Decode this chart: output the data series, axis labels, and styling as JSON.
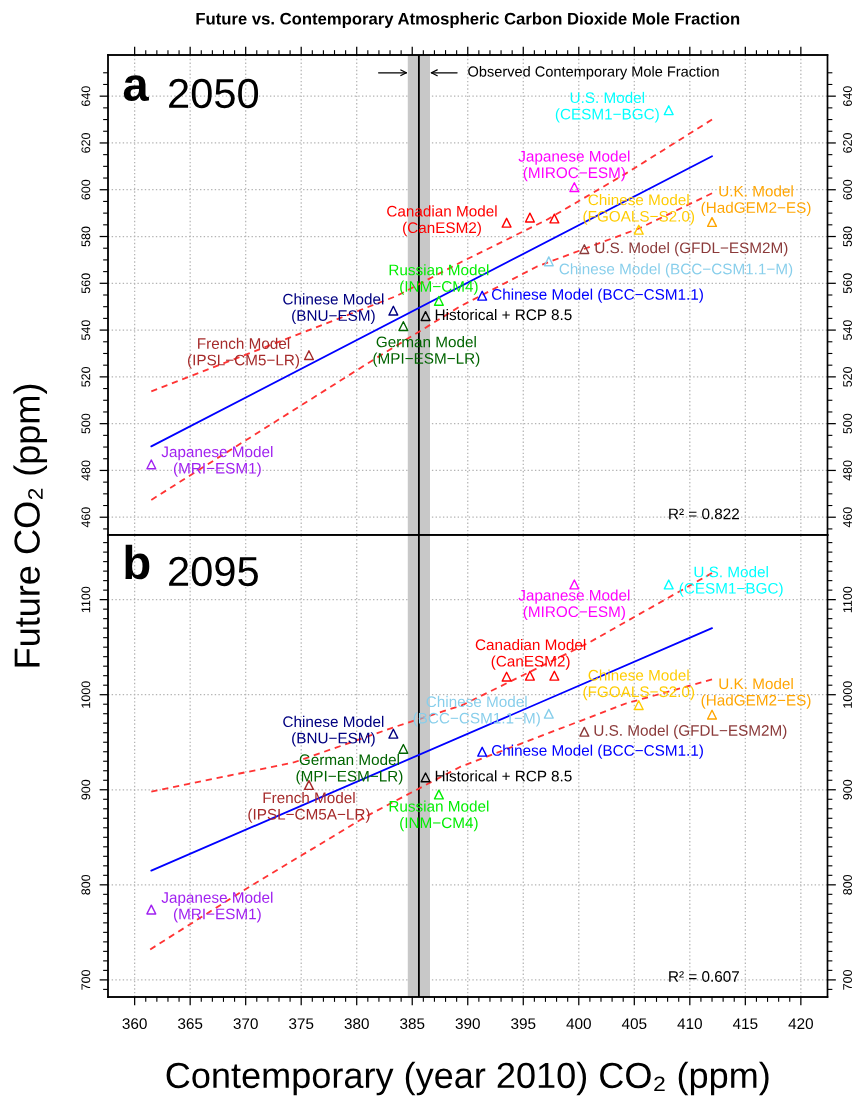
{
  "chart_data": [
    {
      "type": "scatter",
      "title": "Future vs. Contemporary Atmospheric Carbon Dioxide Mole Fraction",
      "ylabel": "Future CO₂ (ppm)",
      "marker": "triangle",
      "grid": true,
      "tick_labels": "y",
      "xlim": [
        357.6,
        422.4
      ],
      "ylim": [
        452.4,
        657.6
      ],
      "y2lim": [
        452.4,
        657.6
      ],
      "xticks": [
        360,
        {
          "value": 361,
          "label": null
        },
        {
          "value": 362,
          "label": null
        },
        {
          "value": 363,
          "label": null
        },
        {
          "value": 364,
          "label": null
        },
        365,
        {
          "value": 366,
          "label": null
        },
        {
          "value": 367,
          "label": null
        },
        {
          "value": 368,
          "label": null
        },
        {
          "value": 369,
          "label": null
        },
        370,
        {
          "value": 371,
          "label": null
        },
        {
          "value": 372,
          "label": null
        },
        {
          "value": 373,
          "label": null
        },
        {
          "value": 374,
          "label": null
        },
        375,
        {
          "value": 376,
          "label": null
        },
        {
          "value": 377,
          "label": null
        },
        {
          "value": 378,
          "label": null
        },
        {
          "value": 379,
          "label": null
        },
        380,
        {
          "value": 381,
          "label": null
        },
        {
          "value": 382,
          "label": null
        },
        {
          "value": 383,
          "label": null
        },
        {
          "value": 384,
          "label": null
        },
        385,
        {
          "value": 386,
          "label": null
        },
        {
          "value": 387,
          "label": null
        },
        {
          "value": 388,
          "label": null
        },
        {
          "value": 389,
          "label": null
        },
        390,
        {
          "value": 391,
          "label": null
        },
        {
          "value": 392,
          "label": null
        },
        {
          "value": 393,
          "label": null
        },
        {
          "value": 394,
          "label": null
        },
        395,
        {
          "value": 396,
          "label": null
        },
        {
          "value": 397,
          "label": null
        },
        {
          "value": 398,
          "label": null
        },
        {
          "value": 399,
          "label": null
        },
        400,
        {
          "value": 401,
          "label": null
        },
        {
          "value": 402,
          "label": null
        },
        {
          "value": 403,
          "label": null
        },
        {
          "value": 404,
          "label": null
        },
        405,
        {
          "value": 406,
          "label": null
        },
        {
          "value": 407,
          "label": null
        },
        {
          "value": 408,
          "label": null
        },
        {
          "value": 409,
          "label": null
        },
        410,
        {
          "value": 411,
          "label": null
        },
        {
          "value": 412,
          "label": null
        },
        {
          "value": 413,
          "label": null
        },
        {
          "value": 414,
          "label": null
        },
        415,
        {
          "value": 416,
          "label": null
        },
        {
          "value": 417,
          "label": null
        },
        {
          "value": 418,
          "label": null
        },
        {
          "value": 419,
          "label": null
        },
        420
      ],
      "yticks": [
        {
          "value": 455,
          "label": null
        },
        460,
        {
          "value": 465,
          "label": null
        },
        {
          "value": 470,
          "label": null
        },
        {
          "value": 475,
          "label": null
        },
        480,
        {
          "value": 485,
          "label": null
        },
        {
          "value": 490,
          "label": null
        },
        {
          "value": 495,
          "label": null
        },
        500,
        {
          "value": 505,
          "label": null
        },
        {
          "value": 510,
          "label": null
        },
        {
          "value": 515,
          "label": null
        },
        520,
        {
          "value": 525,
          "label": null
        },
        {
          "value": 530,
          "label": null
        },
        {
          "value": 535,
          "label": null
        },
        540,
        {
          "value": 545,
          "label": null
        },
        {
          "value": 550,
          "label": null
        },
        {
          "value": 555,
          "label": null
        },
        560,
        {
          "value": 565,
          "label": null
        },
        {
          "value": 570,
          "label": null
        },
        {
          "value": 575,
          "label": null
        },
        580,
        {
          "value": 585,
          "label": null
        },
        {
          "value": 590,
          "label": null
        },
        {
          "value": 595,
          "label": null
        },
        600,
        {
          "value": 605,
          "label": null
        },
        {
          "value": 610,
          "label": null
        },
        {
          "value": 615,
          "label": null
        },
        620,
        {
          "value": 625,
          "label": null
        },
        {
          "value": 630,
          "label": null
        },
        {
          "value": 635,
          "label": null
        },
        640,
        {
          "value": 645,
          "label": null
        },
        {
          "value": 650,
          "label": null
        }
      ],
      "y2ticks": [
        {
          "value": 455,
          "label": null
        },
        460,
        {
          "value": 465,
          "label": null
        },
        {
          "value": 470,
          "label": null
        },
        {
          "value": 475,
          "label": null
        },
        480,
        {
          "value": 485,
          "label": null
        },
        {
          "value": 490,
          "label": null
        },
        {
          "value": 495,
          "label": null
        },
        500,
        {
          "value": 505,
          "label": null
        },
        {
          "value": 510,
          "label": null
        },
        {
          "value": 515,
          "label": null
        },
        520,
        {
          "value": 525,
          "label": null
        },
        {
          "value": 530,
          "label": null
        },
        {
          "value": 535,
          "label": null
        },
        540,
        {
          "value": 545,
          "label": null
        },
        {
          "value": 550,
          "label": null
        },
        {
          "value": 555,
          "label": null
        },
        560,
        {
          "value": 565,
          "label": null
        },
        {
          "value": 570,
          "label": null
        },
        {
          "value": 575,
          "label": null
        },
        580,
        {
          "value": 585,
          "label": null
        },
        {
          "value": 590,
          "label": null
        },
        {
          "value": 595,
          "label": null
        },
        600,
        {
          "value": 605,
          "label": null
        },
        {
          "value": 610,
          "label": null
        },
        {
          "value": 615,
          "label": null
        },
        620,
        {
          "value": 625,
          "label": null
        },
        {
          "value": 630,
          "label": null
        },
        {
          "value": 635,
          "label": null
        },
        640,
        {
          "value": 645,
          "label": null
        },
        {
          "value": 650,
          "label": null
        }
      ],
      "series": [
        {
          "name": "Japanese Model\n(MRI−ESM1)",
          "color": "#a020f0",
          "x": [
            361.5
          ],
          "values": [
            482.6
          ]
        },
        {
          "name": "French Model\n(IPSL−CM5−LR)",
          "color": "#a52a2a",
          "x": [
            375.7
          ],
          "values": [
            529.3
          ]
        },
        {
          "name": "Chinese Model\n(BNU−ESM)",
          "color": "#000080",
          "x": [
            383.3
          ],
          "values": [
            548.3
          ]
        },
        {
          "name": "German Model\n(MPI−ESM−LR)",
          "color": "#006400",
          "x": [
            384.2
          ],
          "values": [
            541.7
          ]
        },
        {
          "name": "Historical + RCP 8.5",
          "color": "#000000",
          "x": [
            386.2
          ],
          "values": [
            546.0
          ]
        },
        {
          "name": "Russian Model\n(INM−CM4)",
          "color": "#00ee00",
          "x": [
            387.4
          ],
          "values": [
            552.5
          ]
        },
        {
          "name": "Chinese Model (BCC−CSM1.1)",
          "color": "#0000ff",
          "x": [
            391.3
          ],
          "values": [
            554.7
          ]
        },
        {
          "name": "Canadian Model\n(CanESM2)",
          "color": "#ff0000",
          "x": [
            393.5,
            395.6,
            397.8
          ],
          "values": [
            585.9,
            588.1,
            587.7
          ]
        },
        {
          "name": "Chinese Model (BCC−CSM1.1−M)",
          "color": "#87ceeb",
          "x": [
            397.3
          ],
          "values": [
            569.4
          ]
        },
        {
          "name": "U.S. Model (GFDL−ESM2M)",
          "color": "#8b3a3a",
          "x": [
            400.5
          ],
          "values": [
            574.6
          ]
        },
        {
          "name": "Japanese Model\n(MIROC−ESM)",
          "color": "#ff00ff",
          "x": [
            399.6
          ],
          "values": [
            601.1
          ]
        },
        {
          "name": "Chinese Model\n(FGOALS−S2.0)",
          "color": "#ffcc00",
          "x": [
            405.4
          ],
          "values": [
            582.9
          ]
        },
        {
          "name": "U.K. Model\n(HadGEM2−ES)",
          "color": "#ffa500",
          "x": [
            412.0
          ],
          "values": [
            586.2
          ]
        },
        {
          "name": "U.S. Model\n(CESM1−BGC)",
          "color": "#00ffff",
          "x": [
            408.1
          ],
          "values": [
            634.0
          ]
        },
        {
          "type": "line",
          "marker": "none",
          "color": "#0000ff",
          "x": [
            361.5,
            412.0
          ],
          "values": [
            490.3,
            614.3
          ]
        },
        {
          "type": "line",
          "marker": "none",
          "line_style": "dashed",
          "color": "#ff3333",
          "x": [
            361.5,
            383.6,
            389.5,
            397.1,
            404.3,
            412.0
          ],
          "values": [
            513.8,
            554.6,
            569.3,
            587.1,
            607.1,
            630.0
          ]
        },
        {
          "type": "line",
          "marker": "none",
          "line_style": "dashed",
          "color": "#ff3333",
          "x": [
            361.5,
            381.2,
            389.3,
            396.2,
            405.5,
            412.0
          ],
          "values": [
            467.4,
            526.4,
            550.1,
            567.1,
            583.6,
            598.5
          ]
        }
      ],
      "ref_lines": [
        {
          "axis": "x",
          "value": 385.6,
          "color": "#000000"
        }
      ],
      "bands": [
        {
          "axis": "x",
          "from": 384.6,
          "to": 386.6,
          "color": "#c8c8c8"
        }
      ],
      "annotations": [
        "a",
        "2050",
        "R² = 0.822",
        {
          "text": "Observed Contemporary Mole Fraction",
          "x": 386.6,
          "y": 650
        }
      ]
    },
    {
      "type": "scatter",
      "xlabel": "Contemporary (year 2010) CO₂ (ppm)",
      "marker": "triangle",
      "grid": true,
      "xlim": [
        357.6,
        422.4
      ],
      "ylim": [
        682,
        1168
      ],
      "y2lim": [
        682,
        1168
      ],
      "xticks": [
        360,
        {
          "value": 361,
          "label": null
        },
        {
          "value": 362,
          "label": null
        },
        {
          "value": 363,
          "label": null
        },
        {
          "value": 364,
          "label": null
        },
        365,
        {
          "value": 366,
          "label": null
        },
        {
          "value": 367,
          "label": null
        },
        {
          "value": 368,
          "label": null
        },
        {
          "value": 369,
          "label": null
        },
        370,
        {
          "value": 371,
          "label": null
        },
        {
          "value": 372,
          "label": null
        },
        {
          "value": 373,
          "label": null
        },
        {
          "value": 374,
          "label": null
        },
        375,
        {
          "value": 376,
          "label": null
        },
        {
          "value": 377,
          "label": null
        },
        {
          "value": 378,
          "label": null
        },
        {
          "value": 379,
          "label": null
        },
        380,
        {
          "value": 381,
          "label": null
        },
        {
          "value": 382,
          "label": null
        },
        {
          "value": 383,
          "label": null
        },
        {
          "value": 384,
          "label": null
        },
        385,
        {
          "value": 386,
          "label": null
        },
        {
          "value": 387,
          "label": null
        },
        {
          "value": 388,
          "label": null
        },
        {
          "value": 389,
          "label": null
        },
        390,
        {
          "value": 391,
          "label": null
        },
        {
          "value": 392,
          "label": null
        },
        {
          "value": 393,
          "label": null
        },
        {
          "value": 394,
          "label": null
        },
        395,
        {
          "value": 396,
          "label": null
        },
        {
          "value": 397,
          "label": null
        },
        {
          "value": 398,
          "label": null
        },
        {
          "value": 399,
          "label": null
        },
        400,
        {
          "value": 401,
          "label": null
        },
        {
          "value": 402,
          "label": null
        },
        {
          "value": 403,
          "label": null
        },
        {
          "value": 404,
          "label": null
        },
        405,
        {
          "value": 406,
          "label": null
        },
        {
          "value": 407,
          "label": null
        },
        {
          "value": 408,
          "label": null
        },
        {
          "value": 409,
          "label": null
        },
        410,
        {
          "value": 411,
          "label": null
        },
        {
          "value": 412,
          "label": null
        },
        {
          "value": 413,
          "label": null
        },
        {
          "value": 414,
          "label": null
        },
        415,
        {
          "value": 416,
          "label": null
        },
        {
          "value": 417,
          "label": null
        },
        {
          "value": 418,
          "label": null
        },
        {
          "value": 419,
          "label": null
        },
        420
      ],
      "yticks": [
        {
          "value": 690,
          "label": null
        },
        700,
        {
          "value": 710,
          "label": null
        },
        {
          "value": 720,
          "label": null
        },
        {
          "value": 730,
          "label": null
        },
        {
          "value": 740,
          "label": null
        },
        {
          "value": 750,
          "label": null
        },
        {
          "value": 760,
          "label": null
        },
        {
          "value": 770,
          "label": null
        },
        {
          "value": 780,
          "label": null
        },
        {
          "value": 790,
          "label": null
        },
        800,
        {
          "value": 810,
          "label": null
        },
        {
          "value": 820,
          "label": null
        },
        {
          "value": 830,
          "label": null
        },
        {
          "value": 840,
          "label": null
        },
        {
          "value": 850,
          "label": null
        },
        {
          "value": 860,
          "label": null
        },
        {
          "value": 870,
          "label": null
        },
        {
          "value": 880,
          "label": null
        },
        {
          "value": 890,
          "label": null
        },
        900,
        {
          "value": 910,
          "label": null
        },
        {
          "value": 920,
          "label": null
        },
        {
          "value": 930,
          "label": null
        },
        {
          "value": 940,
          "label": null
        },
        {
          "value": 950,
          "label": null
        },
        {
          "value": 960,
          "label": null
        },
        {
          "value": 970,
          "label": null
        },
        {
          "value": 980,
          "label": null
        },
        {
          "value": 990,
          "label": null
        },
        1000,
        {
          "value": 1010,
          "label": null
        },
        {
          "value": 1020,
          "label": null
        },
        {
          "value": 1030,
          "label": null
        },
        {
          "value": 1040,
          "label": null
        },
        {
          "value": 1050,
          "label": null
        },
        {
          "value": 1060,
          "label": null
        },
        {
          "value": 1070,
          "label": null
        },
        {
          "value": 1080,
          "label": null
        },
        {
          "value": 1090,
          "label": null
        },
        1100,
        {
          "value": 1110,
          "label": null
        },
        {
          "value": 1120,
          "label": null
        },
        {
          "value": 1130,
          "label": null
        },
        {
          "value": 1140,
          "label": null
        },
        {
          "value": 1150,
          "label": null
        },
        {
          "value": 1160,
          "label": null
        }
      ],
      "y2ticks": [
        {
          "value": 690,
          "label": null
        },
        700,
        {
          "value": 710,
          "label": null
        },
        {
          "value": 720,
          "label": null
        },
        {
          "value": 730,
          "label": null
        },
        {
          "value": 740,
          "label": null
        },
        {
          "value": 750,
          "label": null
        },
        {
          "value": 760,
          "label": null
        },
        {
          "value": 770,
          "label": null
        },
        {
          "value": 780,
          "label": null
        },
        {
          "value": 790,
          "label": null
        },
        800,
        {
          "value": 810,
          "label": null
        },
        {
          "value": 820,
          "label": null
        },
        {
          "value": 830,
          "label": null
        },
        {
          "value": 840,
          "label": null
        },
        {
          "value": 850,
          "label": null
        },
        {
          "value": 860,
          "label": null
        },
        {
          "value": 870,
          "label": null
        },
        {
          "value": 880,
          "label": null
        },
        {
          "value": 890,
          "label": null
        },
        900,
        {
          "value": 910,
          "label": null
        },
        {
          "value": 920,
          "label": null
        },
        {
          "value": 930,
          "label": null
        },
        {
          "value": 940,
          "label": null
        },
        {
          "value": 950,
          "label": null
        },
        {
          "value": 960,
          "label": null
        },
        {
          "value": 970,
          "label": null
        },
        {
          "value": 980,
          "label": null
        },
        {
          "value": 990,
          "label": null
        },
        1000,
        {
          "value": 1010,
          "label": null
        },
        {
          "value": 1020,
          "label": null
        },
        {
          "value": 1030,
          "label": null
        },
        {
          "value": 1040,
          "label": null
        },
        {
          "value": 1050,
          "label": null
        },
        {
          "value": 1060,
          "label": null
        },
        {
          "value": 1070,
          "label": null
        },
        {
          "value": 1080,
          "label": null
        },
        {
          "value": 1090,
          "label": null
        },
        1100,
        {
          "value": 1110,
          "label": null
        },
        {
          "value": 1120,
          "label": null
        },
        {
          "value": 1130,
          "label": null
        },
        {
          "value": 1140,
          "label": null
        },
        {
          "value": 1150,
          "label": null
        },
        {
          "value": 1160,
          "label": null
        }
      ],
      "series": [
        {
          "name": "Japanese Model\n(MRI−ESM1)",
          "color": "#a020f0",
          "x": [
            361.5
          ],
          "values": [
            774
          ]
        },
        {
          "name": "French Model\n(IPSL−CM5A−LR)",
          "color": "#a52a2a",
          "x": [
            375.7
          ],
          "values": [
            905
          ]
        },
        {
          "name": "Chinese Model\n(BNU−ESM)",
          "color": "#000080",
          "x": [
            383.3
          ],
          "values": [
            959
          ]
        },
        {
          "name": "German Model\n(MPI−ESM−LR)",
          "color": "#006400",
          "x": [
            384.2
          ],
          "values": [
            943
          ]
        },
        {
          "name": "Historical + RCP 8.5",
          "color": "#000000",
          "x": [
            386.2
          ],
          "values": [
            913
          ]
        },
        {
          "name": "Russian Model\n(INM−CM4)",
          "color": "#00ee00",
          "x": [
            387.4
          ],
          "values": [
            895
          ]
        },
        {
          "name": "Chinese Model (BCC−CSM1.1)",
          "color": "#0000ff",
          "x": [
            391.3
          ],
          "values": [
            940
          ]
        },
        {
          "name": "Canadian Model\n(CanESM2)",
          "color": "#ff0000",
          "x": [
            393.5,
            395.6,
            397.8
          ],
          "values": [
            1019,
            1020,
            1020
          ]
        },
        {
          "name": "Chinese Model\n(BCC−CSM1.1−M)",
          "color": "#87ceeb",
          "x": [
            397.3
          ],
          "values": [
            980
          ]
        },
        {
          "name": "U.S. Model (GFDL−ESM2M)",
          "color": "#8b3a3a",
          "x": [
            400.5
          ],
          "values": [
            961
          ]
        },
        {
          "name": "Japanese Model\n(MIROC−ESM)",
          "color": "#ff00ff",
          "x": [
            399.6
          ],
          "values": [
            1116
          ]
        },
        {
          "name": "Chinese Model\n(FGOALS−S2.0)",
          "color": "#ffcc00",
          "x": [
            405.4
          ],
          "values": [
            989
          ]
        },
        {
          "name": "U.K. Model\n(HadGEM2−ES)",
          "color": "#ffa500",
          "x": [
            412.0
          ],
          "values": [
            979
          ]
        },
        {
          "name": "U.S. Model\n(CESM1−BGC)",
          "color": "#00ffff",
          "x": [
            408.1
          ],
          "values": [
            1116
          ]
        },
        {
          "type": "line",
          "marker": "none",
          "color": "#0000ff",
          "x": [
            361.5,
            412.0
          ],
          "values": [
            815,
            1070
          ]
        },
        {
          "type": "line",
          "marker": "none",
          "line_style": "dashed",
          "color": "#ff3333",
          "x": [
            361.5,
            374.4,
            383.4,
            389.5,
            400.8,
            412.0
          ],
          "values": [
            898,
            929,
            966,
            989,
            1054,
            1128
          ]
        },
        {
          "type": "line",
          "marker": "none",
          "line_style": "dashed",
          "color": "#ff3333",
          "x": [
            361.4,
            370.2,
            381.0,
            389.3,
            404.3,
            412.0
          ],
          "values": [
            732,
            797,
            873,
            924,
            991,
            1016
          ]
        }
      ],
      "ref_lines": [
        {
          "axis": "x",
          "value": 385.6,
          "color": "#000000"
        }
      ],
      "bands": [
        {
          "axis": "x",
          "from": 384.6,
          "to": 386.6,
          "color": "#c8c8c8"
        }
      ],
      "annotations": [
        "b",
        "2095",
        "R² = 0.607"
      ]
    }
  ]
}
